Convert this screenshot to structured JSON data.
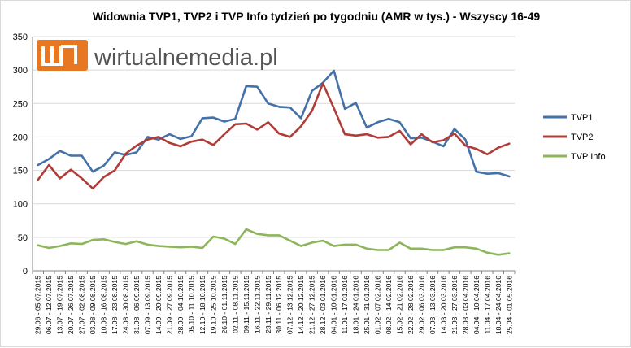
{
  "chart_data": {
    "type": "line",
    "title": "Widownia TVP1, TVP2 i TVP Info  tydzień po tygodniu (AMR w tys.) - Wszyscy 16-49",
    "xlabel": "",
    "ylabel": "",
    "ylim": [
      0,
      350
    ],
    "yticks": [
      0,
      50,
      100,
      150,
      200,
      250,
      300,
      350
    ],
    "grid": true,
    "legend_position": "right",
    "categories": [
      "29.06 - 05.07.2015",
      "06.07 - 12.07.2015",
      "13.07 - 19.07.2015",
      "20.07 - 26.07.2015",
      "27.07 - 02.08.2015",
      "03.08 - 09.08.2015",
      "10.08 - 16.08.2015",
      "17.08 - 23.08.2015",
      "24.08 - 30.08.2015",
      "31.08 - 06.09.2015",
      "07.09 - 13.09.2015",
      "14.09 - 20.09.2015",
      "21.09 - 27.09.2015",
      "28.09 - 04.10.2015",
      "05.10 - 11.10.2015",
      "12.10 - 18.10.2015",
      "19.10 - 25.10.2015",
      "26.10 - 01.11.2015",
      "02.11 - 08.11.2015",
      "09.11 - 15.11.2015",
      "16.11 - 22.11.2015",
      "23.11 - 29.11.2015",
      "30.11 - 06.12.2015",
      "07.12 - 13.12.2015",
      "14.12 - 20.12.2015",
      "21.12 - 27.12.2015",
      "28.12 - 03.01.2016",
      "04.01 - 10.01.2016",
      "11.01 - 17.01.2016",
      "18.01 - 24.01.2016",
      "25.01 - 31.01.2016",
      "01.02 - 07.02.2016",
      "08.02 - 14.02.2016",
      "15.02 - 21.02.2016",
      "22.02 - 28.02.2016",
      "29.02 - 06.03.2016",
      "07.03 - 13.03.2016",
      "14.03 - 20.03.2016",
      "21.03 - 27.03.2016",
      "28.03 - 03.04.2016",
      "04.04 - 10.04.2016",
      "11.04 - 17.04.2016",
      "18.04 - 24.04.2016",
      "25.04 - 01.05.2016"
    ],
    "series": [
      {
        "name": "TVP1",
        "color": "#4472a8",
        "values": [
          158,
          167,
          179,
          172,
          172,
          148,
          157,
          177,
          173,
          177,
          200,
          196,
          204,
          197,
          201,
          228,
          229,
          223,
          227,
          276,
          275,
          250,
          245,
          244,
          228,
          269,
          281,
          299,
          242,
          251,
          214,
          222,
          227,
          222,
          198,
          199,
          193,
          186,
          212,
          196,
          148,
          145,
          146,
          141
        ]
      },
      {
        "name": "TVP2",
        "color": "#b03c38",
        "values": [
          136,
          158,
          138,
          151,
          138,
          123,
          140,
          150,
          175,
          187,
          196,
          200,
          191,
          186,
          193,
          196,
          188,
          204,
          219,
          220,
          211,
          222,
          205,
          200,
          216,
          239,
          280,
          243,
          204,
          202,
          204,
          199,
          200,
          209,
          189,
          204,
          192,
          195,
          205,
          187,
          182,
          174,
          184,
          190
        ]
      },
      {
        "name": "TVP Info",
        "color": "#8db65a",
        "values": [
          38,
          34,
          37,
          41,
          40,
          46,
          47,
          43,
          40,
          44,
          39,
          37,
          36,
          35,
          36,
          34,
          51,
          48,
          40,
          62,
          55,
          53,
          53,
          45,
          37,
          42,
          45,
          37,
          39,
          39,
          33,
          31,
          31,
          42,
          33,
          33,
          31,
          31,
          35,
          35,
          33,
          27,
          24,
          26
        ]
      }
    ]
  },
  "watermark": {
    "text": "wirtualnemedia.pl",
    "color": "#e87722"
  }
}
